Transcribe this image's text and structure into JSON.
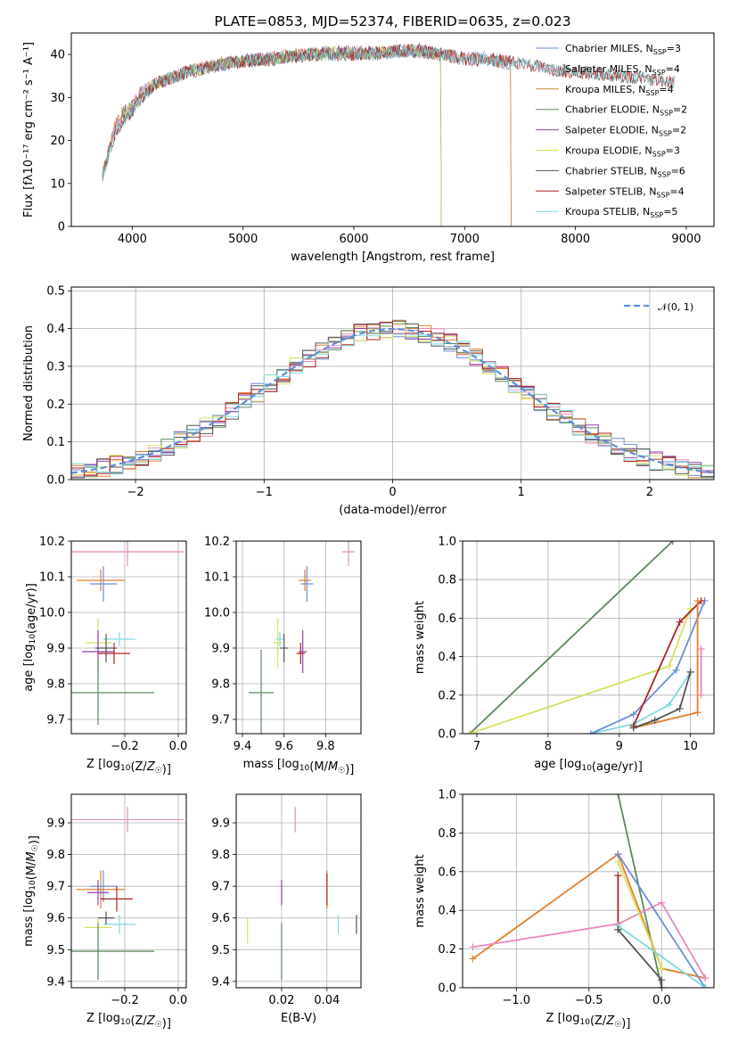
{
  "chart_data": [
    {
      "type": "line",
      "title": "PLATE=0853, MJD=52374, FIBERID=0635, z=0.023",
      "xlabel": "wavelength [Angstrom, rest frame]",
      "ylabel": "Flux [fλ10⁻¹⁷ erg cm⁻² s⁻¹ A⁻¹]",
      "xlim": [
        3450,
        9250
      ],
      "ylim": [
        0,
        45
      ],
      "xticks": [
        "4000",
        "5000",
        "6000",
        "7000",
        "8000",
        "9000"
      ],
      "yticks": [
        "0",
        "10",
        "20",
        "30",
        "40"
      ],
      "legend_position": "top-right",
      "grid": false,
      "series": [
        {
          "name": "Chabrier MILES, N_SSP=3",
          "color": "#6b8fd8",
          "x": [
            3730,
            3850,
            4000,
            4100,
            4300,
            4500,
            4800,
            5000,
            5200,
            5500,
            5800,
            6000,
            6300,
            6500,
            6800,
            7000,
            7200,
            7300,
            7400,
            7420
          ],
          "y": [
            12,
            24,
            28,
            32,
            34,
            36,
            38,
            38.5,
            39,
            40,
            40.5,
            40,
            40.5,
            41,
            40,
            39,
            39.5,
            38.5,
            38,
            37
          ]
        },
        {
          "name": "Salpeter MILES, N_SSP=4",
          "color": "#e889be",
          "x": [
            3730,
            3850,
            4000,
            4100,
            4300,
            4500,
            4800,
            5000,
            5200,
            5500,
            5800,
            6000,
            6300,
            6500,
            6800,
            7000,
            7200,
            7300,
            7400,
            7420
          ],
          "y": [
            12,
            24,
            28,
            32,
            34,
            36,
            38,
            38.5,
            39,
            40,
            40.5,
            40,
            40.5,
            41,
            40,
            39,
            39.5,
            38.5,
            38,
            37
          ]
        },
        {
          "name": "Kroupa MILES, N_SSP=4",
          "color": "#c08a2f",
          "x": [
            3730,
            3850,
            4000,
            4100,
            4300,
            4500,
            4800,
            5000,
            5200,
            5500,
            5800,
            6000,
            6300,
            6500,
            6800,
            7000,
            7200,
            7300,
            7400,
            7420
          ],
          "y": [
            12,
            24,
            28,
            32,
            34,
            36,
            38,
            38.5,
            39,
            40,
            40.5,
            40,
            40.5,
            41,
            40,
            39,
            39.5,
            38.5,
            38,
            37
          ]
        },
        {
          "name": "Chabrier ELODIE, N_SSP=2",
          "color": "#5b8a5b",
          "x": [
            3900,
            4000,
            4200,
            4500,
            4800,
            5000,
            5300,
            5600,
            5900,
            6200,
            6500,
            6790
          ],
          "y": [
            26,
            28,
            33,
            36,
            37.5,
            38.5,
            39,
            40,
            40.5,
            40.5,
            41,
            40
          ]
        },
        {
          "name": "Salpeter ELODIE, N_SSP=2",
          "color": "#8e44ad",
          "x": [
            3900,
            4000,
            4200,
            4500,
            4800,
            5000,
            5300,
            5600,
            5900,
            6200,
            6500,
            6790
          ],
          "y": [
            26,
            28,
            33,
            36,
            37.5,
            38.5,
            39,
            40,
            40.5,
            40.5,
            41,
            40
          ]
        },
        {
          "name": "Kroupa ELODIE, N_SSP=3",
          "color": "#d8e060",
          "x": [
            3900,
            4000,
            4200,
            4500,
            4800,
            5000,
            5300,
            5600,
            5900,
            6200,
            6500,
            6790
          ],
          "y": [
            26,
            28,
            33,
            36,
            37.5,
            38.5,
            39,
            40,
            40.5,
            40.5,
            41,
            40
          ]
        },
        {
          "name": "Chabrier STELIB, N_SSP=6",
          "color": "#555555",
          "x": [
            3730,
            3850,
            4000,
            4200,
            4500,
            4800,
            5000,
            5300,
            5600,
            6000,
            6300,
            6600,
            7000,
            7400,
            7800,
            8200,
            8600,
            8900
          ],
          "y": [
            12,
            22,
            27,
            33,
            36,
            37.5,
            38.5,
            39,
            40,
            40,
            40.5,
            41,
            39,
            38.5,
            36.5,
            35.5,
            34.5,
            33.5
          ]
        },
        {
          "name": "Salpeter STELIB, N_SSP=4",
          "color": "#b22222",
          "x": [
            3730,
            3850,
            4000,
            4200,
            4500,
            4800,
            5000,
            5300,
            5600,
            6000,
            6300,
            6600,
            7000,
            7400,
            7800,
            8200,
            8600,
            8900
          ],
          "y": [
            12,
            22,
            27,
            33,
            36,
            37.5,
            38.5,
            39,
            40,
            40,
            40.5,
            41,
            39,
            38.5,
            36.5,
            35.5,
            34.5,
            33.5
          ]
        },
        {
          "name": "Kroupa STELIB, N_SSP=5",
          "color": "#7fd8e0",
          "x": [
            3730,
            3850,
            4000,
            4200,
            4500,
            4800,
            5000,
            5300,
            5600,
            6000,
            6300,
            6600,
            7000,
            7400,
            7800,
            8200,
            8600,
            8900
          ],
          "y": [
            12,
            22,
            27,
            33,
            36,
            37.5,
            38.5,
            39,
            40,
            40,
            40.5,
            41,
            39,
            38.5,
            36.5,
            35.5,
            34.5,
            33.5
          ]
        }
      ]
    },
    {
      "type": "line",
      "title": "",
      "xlabel": "(data-model)/error",
      "ylabel": "Normed distribution",
      "xlim": [
        -2.5,
        2.5
      ],
      "ylim": [
        0,
        0.51
      ],
      "xticks": [
        "−2",
        "−1",
        "0",
        "1",
        "2"
      ],
      "yticks": [
        "0.0",
        "0.1",
        "0.2",
        "0.3",
        "0.4",
        "0.5"
      ],
      "grid": true,
      "legend_position": "top-right",
      "legend": "𝒩(0, 1)",
      "reference_curve": {
        "name": "𝒩(0, 1)",
        "mean": 0,
        "std": 1,
        "color": "#5b8fd8",
        "dashed": true
      },
      "histogram_colors": [
        "#6b8fd8",
        "#e889be",
        "#e07f2a",
        "#5b8a5b",
        "#8e44ad",
        "#d8e060",
        "#555555",
        "#b22222",
        "#7fd8e0"
      ]
    },
    {
      "type": "scatter",
      "title": "",
      "xlabel": "Z [log10(Z/Z☉)]",
      "ylabel": "age  [log10(age/yr)]",
      "xlim": [
        -0.4,
        0.03
      ],
      "ylim": [
        9.66,
        10.2
      ],
      "xticks": [
        "−0.2",
        "0.0"
      ],
      "yticks": [
        "9.7",
        "9.8",
        "9.9",
        "10.0",
        "10.1",
        "10.2"
      ],
      "grid": true,
      "points": [
        {
          "x": -0.19,
          "y": 10.17,
          "xerr": 0.21,
          "yerr": 0.04,
          "color": "#e889be"
        },
        {
          "x": -0.29,
          "y": 10.09,
          "xerr": 0.09,
          "yerr": 0.03,
          "color": "#e07f2a"
        },
        {
          "x": -0.28,
          "y": 10.08,
          "xerr": 0.05,
          "yerr": 0.05,
          "color": "#6b8fd8"
        },
        {
          "x": -0.22,
          "y": 9.925,
          "xerr": 0.06,
          "yerr": 0.02,
          "color": "#7fd8e0"
        },
        {
          "x": -0.3,
          "y": 9.915,
          "xerr": 0.05,
          "yerr": 0.07,
          "color": "#d8e060"
        },
        {
          "x": -0.3,
          "y": 9.89,
          "xerr": 0.06,
          "yerr": 0.06,
          "color": "#8e44ad"
        },
        {
          "x": -0.27,
          "y": 9.9,
          "xerr": 0.04,
          "yerr": 0.04,
          "color": "#555555"
        },
        {
          "x": -0.24,
          "y": 9.885,
          "xerr": 0.06,
          "yerr": 0.03,
          "color": "#b22222"
        },
        {
          "x": -0.3,
          "y": 9.775,
          "xerr": 0.21,
          "yerr": 0.09,
          "color": "#5b8a5b"
        }
      ]
    },
    {
      "type": "scatter",
      "title": "",
      "xlabel": "mass [log10(M/M☉)]",
      "ylabel": "",
      "xlim": [
        9.37,
        9.97
      ],
      "ylim": [
        9.66,
        10.2
      ],
      "xticks": [
        "9.4",
        "9.6",
        "9.8"
      ],
      "yticks": [
        "9.7",
        "9.8",
        "9.9",
        "10.0",
        "10.1",
        "10.2"
      ],
      "grid": true,
      "points": [
        {
          "x": 9.91,
          "y": 10.17,
          "xerr": 0.03,
          "yerr": 0.04,
          "color": "#e889be"
        },
        {
          "x": 9.7,
          "y": 10.09,
          "xerr": 0.03,
          "yerr": 0.03,
          "color": "#e07f2a"
        },
        {
          "x": 9.71,
          "y": 10.08,
          "xerr": 0.03,
          "yerr": 0.05,
          "color": "#6b8fd8"
        },
        {
          "x": 9.58,
          "y": 9.925,
          "xerr": 0.02,
          "yerr": 0.02,
          "color": "#7fd8e0"
        },
        {
          "x": 9.57,
          "y": 9.915,
          "xerr": 0.02,
          "yerr": 0.07,
          "color": "#d8e060"
        },
        {
          "x": 9.69,
          "y": 9.89,
          "xerr": 0.02,
          "yerr": 0.06,
          "color": "#8e44ad"
        },
        {
          "x": 9.6,
          "y": 9.9,
          "xerr": 0.02,
          "yerr": 0.04,
          "color": "#555555"
        },
        {
          "x": 9.68,
          "y": 9.885,
          "xerr": 0.02,
          "yerr": 0.03,
          "color": "#b22222"
        },
        {
          "x": 9.49,
          "y": 9.775,
          "xerr": 0.06,
          "yerr": 0.12,
          "color": "#5b8a5b"
        }
      ]
    },
    {
      "type": "line",
      "title": "",
      "xlabel": "age  [log10(age/yr)]",
      "ylabel": "mass weight",
      "xlim": [
        6.8,
        10.33
      ],
      "ylim": [
        0,
        1
      ],
      "xticks": [
        "7",
        "8",
        "9",
        "10"
      ],
      "yticks": [
        "0.0",
        "0.2",
        "0.4",
        "0.6",
        "0.8",
        "1.0"
      ],
      "grid": true,
      "series": [
        {
          "color": "#5b8a5b",
          "x": [
            6.9,
            9.75
          ],
          "y": [
            0.0,
            1.0
          ]
        },
        {
          "color": "#d8e060",
          "x": [
            6.9,
            9.7,
            10.0
          ],
          "y": [
            0.0,
            0.35,
            0.65
          ]
        },
        {
          "color": "#7fd8e0",
          "x": [
            8.6,
            9.2,
            9.7,
            10.0
          ],
          "y": [
            0.0,
            0.05,
            0.15,
            0.32
          ]
        },
        {
          "color": "#6b8fd8",
          "x": [
            8.6,
            9.2,
            9.8,
            10.2
          ],
          "y": [
            0.0,
            0.1,
            0.33,
            0.69
          ]
        },
        {
          "color": "#b22222",
          "x": [
            9.2,
            9.85,
            10.15
          ],
          "y": [
            0.04,
            0.58,
            0.69
          ]
        },
        {
          "color": "#e07f2a",
          "x": [
            9.2,
            10.1,
            10.1
          ],
          "y": [
            0.03,
            0.11,
            0.69
          ]
        },
        {
          "color": "#e889be",
          "x": [
            10.15,
            10.15
          ],
          "y": [
            0.2,
            0.44
          ]
        },
        {
          "color": "#555555",
          "x": [
            9.2,
            9.5,
            9.85,
            10.0
          ],
          "y": [
            0.03,
            0.07,
            0.13,
            0.32
          ]
        }
      ]
    },
    {
      "type": "scatter",
      "title": "",
      "xlabel": "Z [log10(Z/Z☉)]",
      "ylabel": "mass [log10(M/M☉)]",
      "xlim": [
        -0.4,
        0.03
      ],
      "ylim": [
        9.38,
        9.99
      ],
      "xticks": [
        "−0.2",
        "0.0"
      ],
      "yticks": [
        "9.4",
        "9.5",
        "9.6",
        "9.7",
        "9.8",
        "9.9"
      ],
      "grid": true,
      "points": [
        {
          "x": -0.19,
          "y": 9.91,
          "xerr": 0.21,
          "yerr": 0.04,
          "color": "#e889be"
        },
        {
          "x": -0.29,
          "y": 9.69,
          "xerr": 0.09,
          "yerr": 0.06,
          "color": "#e07f2a"
        },
        {
          "x": -0.28,
          "y": 9.7,
          "xerr": 0.05,
          "yerr": 0.05,
          "color": "#6b8fd8"
        },
        {
          "x": -0.22,
          "y": 9.58,
          "xerr": 0.06,
          "yerr": 0.03,
          "color": "#7fd8e0"
        },
        {
          "x": -0.3,
          "y": 9.57,
          "xerr": 0.05,
          "yerr": 0.03,
          "color": "#d8e060"
        },
        {
          "x": -0.3,
          "y": 9.68,
          "xerr": 0.04,
          "yerr": 0.04,
          "color": "#8e44ad"
        },
        {
          "x": -0.27,
          "y": 9.6,
          "xerr": 0.03,
          "yerr": 0.02,
          "color": "#555555"
        },
        {
          "x": -0.23,
          "y": 9.66,
          "xerr": 0.06,
          "yerr": 0.04,
          "color": "#b22222"
        },
        {
          "x": -0.3,
          "y": 9.495,
          "xerr": 0.21,
          "yerr": 0.09,
          "color": "#5b8a5b"
        }
      ]
    },
    {
      "type": "scatter",
      "title": "",
      "xlabel": "E(B-V)",
      "ylabel": "",
      "xlim": [
        0,
        0.055
      ],
      "ylim": [
        9.38,
        9.99
      ],
      "xticks": [
        "0.02",
        "0.04"
      ],
      "yticks": [
        "9.4",
        "9.5",
        "9.6",
        "9.7",
        "9.8",
        "9.9"
      ],
      "grid": true,
      "points": [
        {
          "x": 0.026,
          "y": 9.91,
          "yerr": 0.04,
          "color": "#e889be"
        },
        {
          "x": 0.04,
          "y": 9.69,
          "yerr": 0.06,
          "color": "#e07f2a"
        },
        {
          "x": 0.04,
          "y": 9.69,
          "yerr": 0.05,
          "color": "#b22222"
        },
        {
          "x": 0.045,
          "y": 9.58,
          "yerr": 0.03,
          "color": "#7fd8e0"
        },
        {
          "x": 0.005,
          "y": 9.56,
          "yerr": 0.04,
          "color": "#d8e060"
        },
        {
          "x": 0.02,
          "y": 9.68,
          "yerr": 0.04,
          "color": "#8e44ad"
        },
        {
          "x": 0.053,
          "y": 9.58,
          "yerr": 0.03,
          "color": "#555555"
        },
        {
          "x": 0.02,
          "y": 9.495,
          "yerr": 0.09,
          "color": "#5b8a5b"
        }
      ]
    },
    {
      "type": "line",
      "title": "",
      "xlabel": "Z [log10(Z/Z☉)]",
      "ylabel": "mass weight",
      "xlim": [
        -1.37,
        0.36
      ],
      "ylim": [
        0,
        1
      ],
      "xticks": [
        "−1.0",
        "−0.5",
        "0.0"
      ],
      "yticks": [
        "0.0",
        "0.2",
        "0.4",
        "0.6",
        "0.8",
        "1.0"
      ],
      "grid": true,
      "series": [
        {
          "color": "#5b8a5b",
          "x": [
            -0.3,
            0.0
          ],
          "y": [
            1.0,
            0.0
          ]
        },
        {
          "color": "#e07f2a",
          "x": [
            -1.3,
            -0.3,
            0.0,
            0.3
          ],
          "y": [
            0.15,
            0.69,
            0.1,
            0.05
          ]
        },
        {
          "color": "#e889be",
          "x": [
            -1.3,
            -0.3,
            0.0,
            0.3
          ],
          "y": [
            0.21,
            0.33,
            0.44,
            0.05
          ]
        },
        {
          "color": "#6b8fd8",
          "x": [
            -0.3,
            0.3
          ],
          "y": [
            0.69,
            0.0
          ]
        },
        {
          "color": "#d8e060",
          "x": [
            -0.3,
            0.0
          ],
          "y": [
            0.65,
            0.1
          ]
        },
        {
          "color": "#b22222",
          "x": [
            -0.3,
            -0.3
          ],
          "y": [
            0.58,
            0.3
          ]
        },
        {
          "color": "#7fd8e0",
          "x": [
            -0.3,
            0.3
          ],
          "y": [
            0.32,
            0.0
          ]
        },
        {
          "color": "#555555",
          "x": [
            -0.3,
            0.0,
            0.0
          ],
          "y": [
            0.3,
            0.04,
            0.0
          ]
        }
      ]
    }
  ]
}
